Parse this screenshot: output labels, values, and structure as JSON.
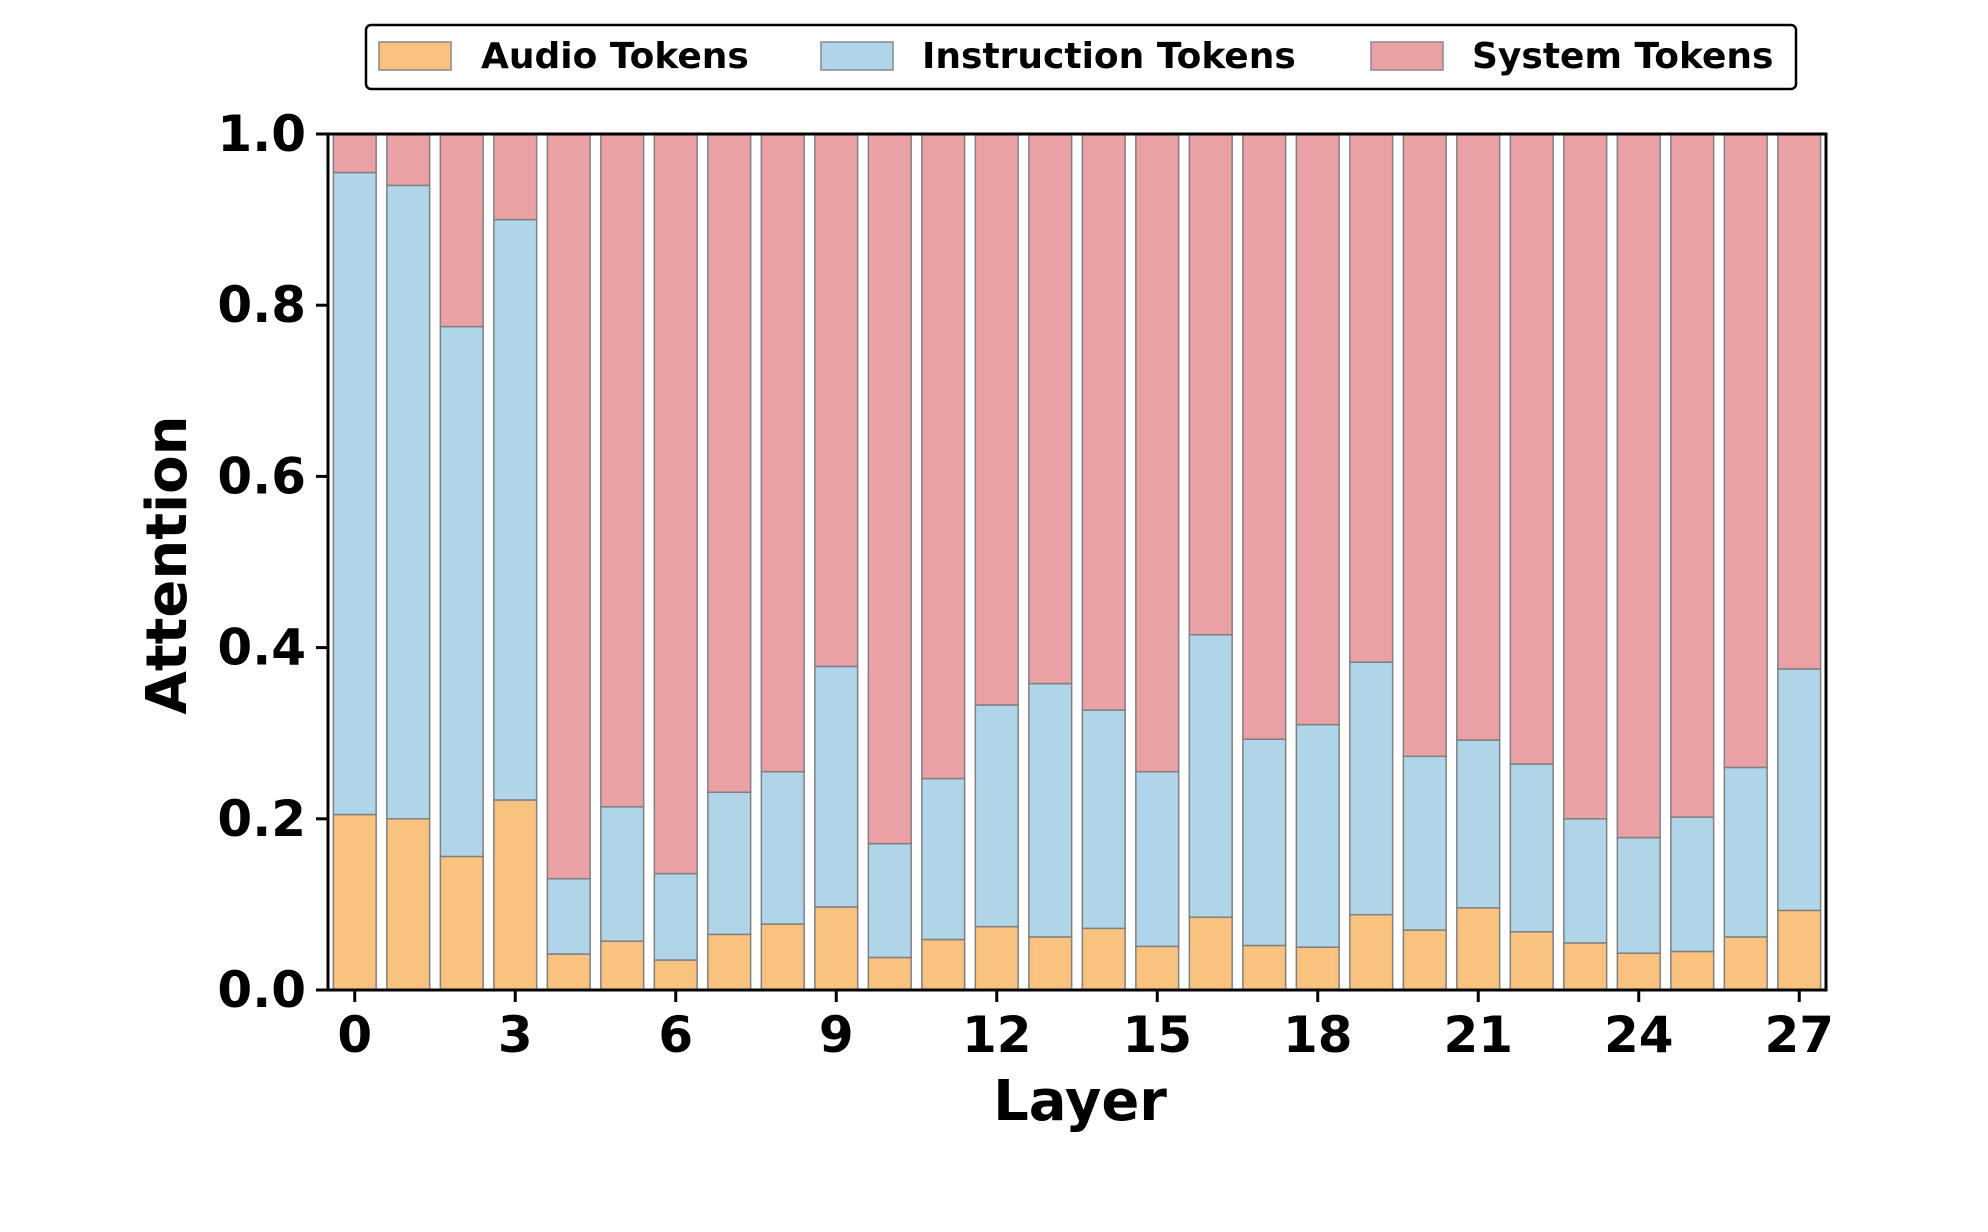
{
  "chart_data": {
    "type": "bar",
    "stacked": true,
    "xlabel": "Layer",
    "ylabel": "Attention",
    "ylim": [
      0,
      1.0
    ],
    "xlim": [
      -0.5,
      27.5
    ],
    "x_ticks": [
      0,
      3,
      6,
      9,
      12,
      15,
      18,
      21,
      24,
      27
    ],
    "y_ticks": [
      0.0,
      0.2,
      0.4,
      0.6,
      0.8,
      1.0
    ],
    "y_tick_labels": [
      "0.0",
      "0.2",
      "0.4",
      "0.6",
      "0.8",
      "1.0"
    ],
    "legend_position": "top-center",
    "categories": [
      0,
      1,
      2,
      3,
      4,
      5,
      6,
      7,
      8,
      9,
      10,
      11,
      12,
      13,
      14,
      15,
      16,
      17,
      18,
      19,
      20,
      21,
      22,
      23,
      24,
      25,
      26,
      27
    ],
    "series": [
      {
        "name": "Audio Tokens",
        "color": "#fac27f",
        "values": [
          0.205,
          0.2,
          0.156,
          0.222,
          0.042,
          0.057,
          0.035,
          0.065,
          0.077,
          0.097,
          0.038,
          0.059,
          0.074,
          0.062,
          0.072,
          0.051,
          0.085,
          0.052,
          0.05,
          0.088,
          0.07,
          0.096,
          0.068,
          0.055,
          0.043,
          0.045,
          0.062,
          0.093
        ]
      },
      {
        "name": "Instruction Tokens",
        "color": "#b0d4e8",
        "values": [
          0.75,
          0.74,
          0.619,
          0.678,
          0.088,
          0.157,
          0.101,
          0.166,
          0.178,
          0.281,
          0.133,
          0.188,
          0.259,
          0.296,
          0.255,
          0.204,
          0.33,
          0.241,
          0.26,
          0.295,
          0.203,
          0.196,
          0.196,
          0.145,
          0.135,
          0.157,
          0.198,
          0.282
        ]
      },
      {
        "name": "System Tokens",
        "color": "#e9a1a6",
        "values": [
          0.045,
          0.06,
          0.225,
          0.1,
          0.87,
          0.786,
          0.864,
          0.769,
          0.745,
          0.622,
          0.829,
          0.753,
          0.667,
          0.642,
          0.673,
          0.745,
          0.585,
          0.707,
          0.69,
          0.617,
          0.727,
          0.708,
          0.736,
          0.8,
          0.822,
          0.798,
          0.74,
          0.625
        ]
      }
    ]
  }
}
